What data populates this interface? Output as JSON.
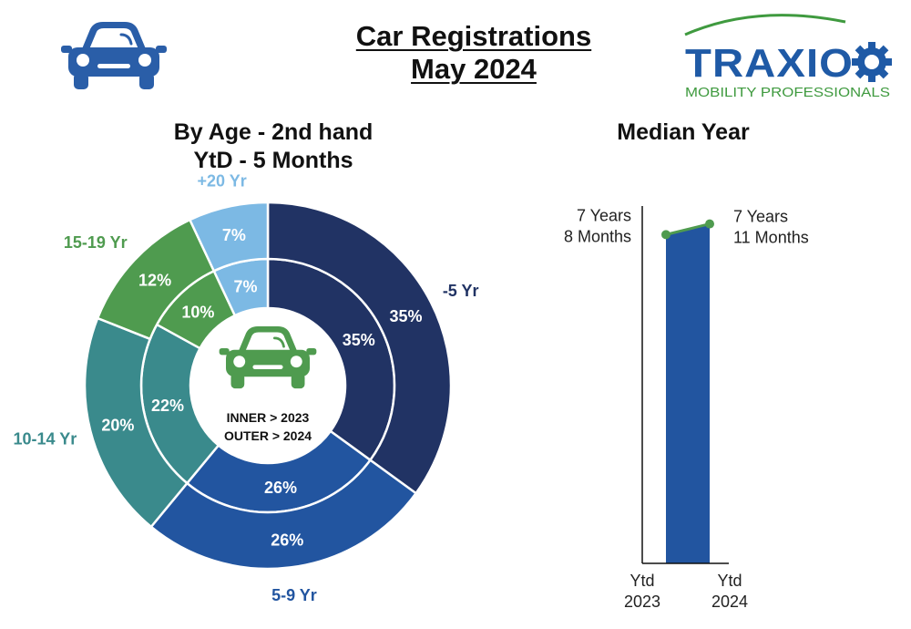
{
  "header": {
    "title_line1": "Car Registrations",
    "title_line2": "May 2024",
    "car_icon": "car-icon",
    "logo": {
      "name": "TRAXIO",
      "tagline": "MOBILITY PROFESSIONALS",
      "blue": "#1f5aa6",
      "green": "#3f9a3f"
    }
  },
  "colors": {
    "navy": "#213364",
    "blue": "#2255a0",
    "teal": "#3a8a8c",
    "green": "#4f9b4f",
    "light_blue": "#7cb9e4",
    "label_navy": "#213364",
    "label_blue": "#2255a0",
    "label_teal": "#3a8a8c",
    "label_green": "#4f9b4f",
    "label_light": "#7cb9e4",
    "median_bar": "#2255a0",
    "median_line": "#4f9b4f"
  },
  "chart_data": [
    {
      "type": "pie",
      "title": "By Age - 2nd hand",
      "subtitle": "YtD - 5 Months",
      "center_text": [
        "INNER > 2023",
        "OUTER > 2024"
      ],
      "categories": [
        "-5 Yr",
        "5-9 Yr",
        "10-14 Yr",
        "15-19 Yr",
        "+20 Yr"
      ],
      "series": [
        {
          "name": "2023",
          "ring": "inner",
          "values": [
            35,
            26,
            22,
            10,
            7
          ]
        },
        {
          "name": "2024",
          "ring": "outer",
          "values": [
            35,
            26,
            20,
            12,
            7
          ]
        }
      ]
    },
    {
      "type": "bar",
      "title": "Median Year",
      "categories": [
        "Ytd 2023",
        "Ytd 2024"
      ],
      "category_lines": [
        [
          "Ytd",
          "2023"
        ],
        [
          "Ytd",
          "2024"
        ]
      ],
      "values_months": [
        92,
        95
      ],
      "value_labels": [
        [
          "7 Years",
          "8 Months"
        ],
        [
          "7 Years",
          "11 Months"
        ]
      ],
      "ylim": [
        0,
        100
      ],
      "grid": false
    }
  ]
}
